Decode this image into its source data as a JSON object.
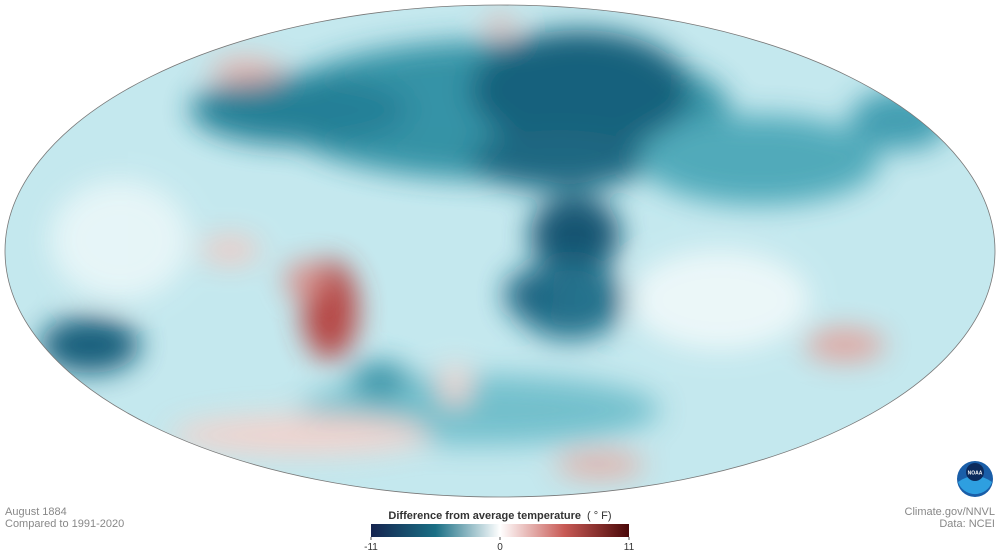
{
  "map": {
    "date": "August 1884",
    "baseline": "Compared to 1991-2020",
    "legend": {
      "title": "Difference from average temperature",
      "unit": "( ° F)",
      "min": -11,
      "max": 11,
      "ticks": [
        -11,
        0,
        11
      ]
    },
    "credit": "Climate.gov/NNVL",
    "source": "Data: NCEI",
    "logo": "NOAA"
  }
}
